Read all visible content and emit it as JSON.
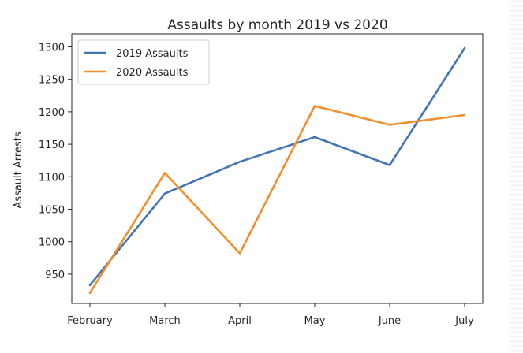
{
  "chart_data": {
    "type": "line",
    "title": "Assaults by month 2019 vs 2020",
    "xlabel": "",
    "ylabel": "Assault Arrests",
    "categories": [
      "February",
      "March",
      "April",
      "May",
      "June",
      "July"
    ],
    "ylim": [
      905,
      1320
    ],
    "yticks": [
      950,
      1000,
      1050,
      1100,
      1150,
      1200,
      1250,
      1300
    ],
    "grid": false,
    "legend_position": "top-left",
    "series": [
      {
        "name": "2019 Assaults",
        "color": "#4374b4",
        "values": [
          933,
          1074,
          1123,
          1161,
          1118,
          1298
        ]
      },
      {
        "name": "2020 Assaults",
        "color": "#f28e2b",
        "values": [
          921,
          1106,
          982,
          1209,
          1180,
          1195
        ]
      }
    ]
  }
}
